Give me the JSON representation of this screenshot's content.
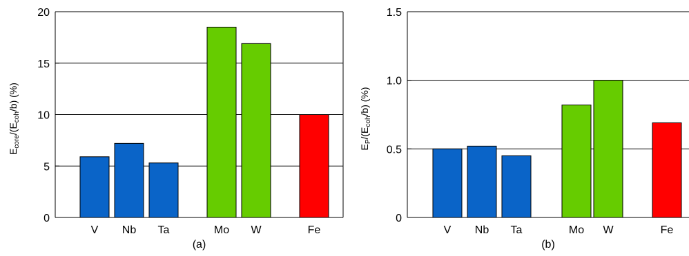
{
  "chart_data": [
    {
      "type": "bar",
      "panel_label": "(a)",
      "ylabel": {
        "pre": "E",
        "sub1": "core",
        "mid": "/(E",
        "sub2": "coh",
        "post": "/b) (%)"
      },
      "ylim": [
        0,
        20
      ],
      "yticks": [
        "0",
        "5",
        "10",
        "15",
        "20"
      ],
      "grid": "horizontal",
      "categories": [
        "V",
        "Nb",
        "Ta",
        "Mo",
        "W",
        "Fe"
      ],
      "values": [
        5.9,
        7.2,
        5.3,
        18.5,
        16.9,
        10.0
      ],
      "bar_colors": [
        "#0a64c8",
        "#0a64c8",
        "#0a64c8",
        "#66cc00",
        "#66cc00",
        "#ff0000"
      ]
    },
    {
      "type": "bar",
      "panel_label": "(b)",
      "ylabel": {
        "pre": "E",
        "sub1": "P",
        "mid": "/(E",
        "sub2": "coh",
        "post": "/b) (%)"
      },
      "ylim": [
        0,
        1.5
      ],
      "yticks": [
        "0",
        "0.5",
        "1.0",
        "1.5"
      ],
      "grid": "horizontal",
      "categories": [
        "V",
        "Nb",
        "Ta",
        "Mo",
        "W",
        "Fe"
      ],
      "values": [
        0.5,
        0.52,
        0.45,
        0.82,
        1.0,
        0.69
      ],
      "bar_colors": [
        "#0a64c8",
        "#0a64c8",
        "#0a64c8",
        "#66cc00",
        "#66cc00",
        "#ff0000"
      ]
    }
  ]
}
